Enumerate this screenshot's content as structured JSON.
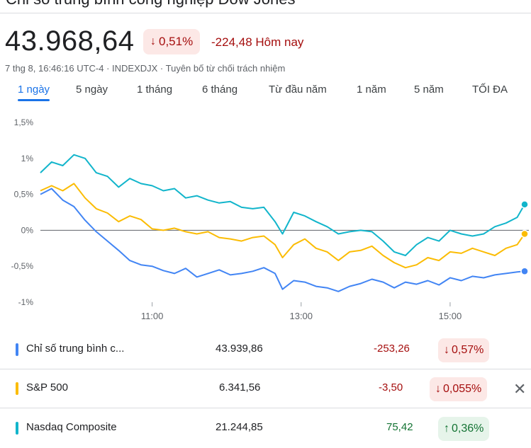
{
  "header": {
    "title": "Chỉ số trung bình công nghiệp Dow Jones",
    "price": "43.968,64",
    "change_pct": "0,51%",
    "change_today": "-224,48 Hôm nay",
    "meta": "7 thg 8, 16:46:16 UTC-4 · INDEXDJX · Tuyên bố từ chối trách nhiệm",
    "accent_negative": "#a50e0e"
  },
  "tabs": [
    {
      "label": "1 ngày",
      "active": true
    },
    {
      "label": "5 ngày"
    },
    {
      "label": "1 tháng"
    },
    {
      "label": "6 tháng"
    },
    {
      "label": "Từ đầu năm"
    },
    {
      "label": "1 năm"
    },
    {
      "label": "5 năm"
    },
    {
      "label": "TỐI ĐA"
    }
  ],
  "chart_data": {
    "type": "line",
    "ylim": [
      -1,
      1.5
    ],
    "yticks": [
      "1,5%",
      "1%",
      "0,5%",
      "0%",
      "-0,5%",
      "-1%"
    ],
    "ytick_values": [
      1.5,
      1,
      0.5,
      0,
      -0.5,
      -1
    ],
    "xticks": [
      "11:00",
      "13:00",
      "15:00"
    ],
    "xtick_values": [
      11,
      13,
      15
    ],
    "xlim": [
      9.5,
      16.0
    ],
    "grid": false,
    "series": [
      {
        "name": "Chỉ số trung bình c...",
        "color": "#4285f4",
        "x": [
          9.5,
          9.65,
          9.8,
          9.95,
          10.1,
          10.25,
          10.4,
          10.55,
          10.7,
          10.85,
          11.0,
          11.15,
          11.3,
          11.45,
          11.6,
          11.75,
          11.9,
          12.05,
          12.2,
          12.35,
          12.5,
          12.65,
          12.75,
          12.9,
          13.05,
          13.2,
          13.35,
          13.5,
          13.65,
          13.8,
          13.95,
          14.1,
          14.25,
          14.4,
          14.55,
          14.7,
          14.85,
          15.0,
          15.15,
          15.3,
          15.45,
          15.6,
          15.75,
          15.9,
          16.0
        ],
        "values": [
          0.5,
          0.58,
          0.42,
          0.33,
          0.14,
          -0.02,
          -0.15,
          -0.28,
          -0.42,
          -0.48,
          -0.5,
          -0.56,
          -0.6,
          -0.53,
          -0.65,
          -0.6,
          -0.55,
          -0.62,
          -0.6,
          -0.57,
          -0.52,
          -0.6,
          -0.82,
          -0.7,
          -0.72,
          -0.78,
          -0.8,
          -0.85,
          -0.78,
          -0.74,
          -0.68,
          -0.72,
          -0.8,
          -0.72,
          -0.75,
          -0.7,
          -0.76,
          -0.66,
          -0.7,
          -0.64,
          -0.66,
          -0.62,
          -0.6,
          -0.58,
          -0.57
        ]
      },
      {
        "name": "S&P 500",
        "color": "#fbbc04",
        "x": [
          9.5,
          9.65,
          9.8,
          9.95,
          10.1,
          10.25,
          10.4,
          10.55,
          10.7,
          10.85,
          11.0,
          11.15,
          11.3,
          11.45,
          11.6,
          11.75,
          11.9,
          12.05,
          12.2,
          12.35,
          12.5,
          12.65,
          12.75,
          12.9,
          13.05,
          13.2,
          13.35,
          13.5,
          13.65,
          13.8,
          13.95,
          14.1,
          14.25,
          14.4,
          14.55,
          14.7,
          14.85,
          15.0,
          15.15,
          15.3,
          15.45,
          15.6,
          15.75,
          15.9,
          16.0
        ],
        "values": [
          0.55,
          0.62,
          0.55,
          0.65,
          0.45,
          0.3,
          0.24,
          0.12,
          0.2,
          0.15,
          0.02,
          0.0,
          0.03,
          -0.02,
          -0.05,
          -0.02,
          -0.1,
          -0.12,
          -0.15,
          -0.1,
          -0.08,
          -0.2,
          -0.38,
          -0.2,
          -0.12,
          -0.25,
          -0.3,
          -0.42,
          -0.3,
          -0.28,
          -0.22,
          -0.35,
          -0.45,
          -0.52,
          -0.48,
          -0.38,
          -0.42,
          -0.3,
          -0.32,
          -0.25,
          -0.3,
          -0.35,
          -0.25,
          -0.2,
          -0.05
        ]
      },
      {
        "name": "Nasdaq Composite",
        "color": "#12b5cb",
        "x": [
          9.5,
          9.65,
          9.8,
          9.95,
          10.1,
          10.25,
          10.4,
          10.55,
          10.7,
          10.85,
          11.0,
          11.15,
          11.3,
          11.45,
          11.6,
          11.75,
          11.9,
          12.05,
          12.2,
          12.35,
          12.5,
          12.65,
          12.75,
          12.9,
          13.05,
          13.2,
          13.35,
          13.5,
          13.65,
          13.8,
          13.95,
          14.1,
          14.25,
          14.4,
          14.55,
          14.7,
          14.85,
          15.0,
          15.15,
          15.3,
          15.45,
          15.6,
          15.75,
          15.9,
          16.0
        ],
        "values": [
          0.8,
          0.95,
          0.9,
          1.05,
          1.0,
          0.8,
          0.75,
          0.6,
          0.72,
          0.65,
          0.62,
          0.55,
          0.58,
          0.45,
          0.48,
          0.42,
          0.38,
          0.4,
          0.32,
          0.3,
          0.32,
          0.12,
          -0.05,
          0.25,
          0.2,
          0.12,
          0.05,
          -0.05,
          -0.02,
          0.0,
          -0.02,
          -0.15,
          -0.3,
          -0.35,
          -0.2,
          -0.1,
          -0.15,
          0.0,
          -0.05,
          -0.08,
          -0.05,
          0.05,
          0.1,
          0.18,
          0.36
        ]
      }
    ]
  },
  "legend": [
    {
      "name": "Chỉ số trung bình c...",
      "color": "#4285f4",
      "value": "43.939,86",
      "change": "-253,26",
      "pct": "0,57%",
      "dir": "down"
    },
    {
      "name": "S&P 500",
      "color": "#fbbc04",
      "value": "6.341,56",
      "change": "-3,50",
      "pct": "0,055%",
      "dir": "down",
      "close_icon": "close-icon"
    },
    {
      "name": "Nasdaq Composite",
      "color": "#12b5cb",
      "value": "21.244,85",
      "change": "75,42",
      "pct": "0,36%",
      "dir": "up"
    }
  ]
}
